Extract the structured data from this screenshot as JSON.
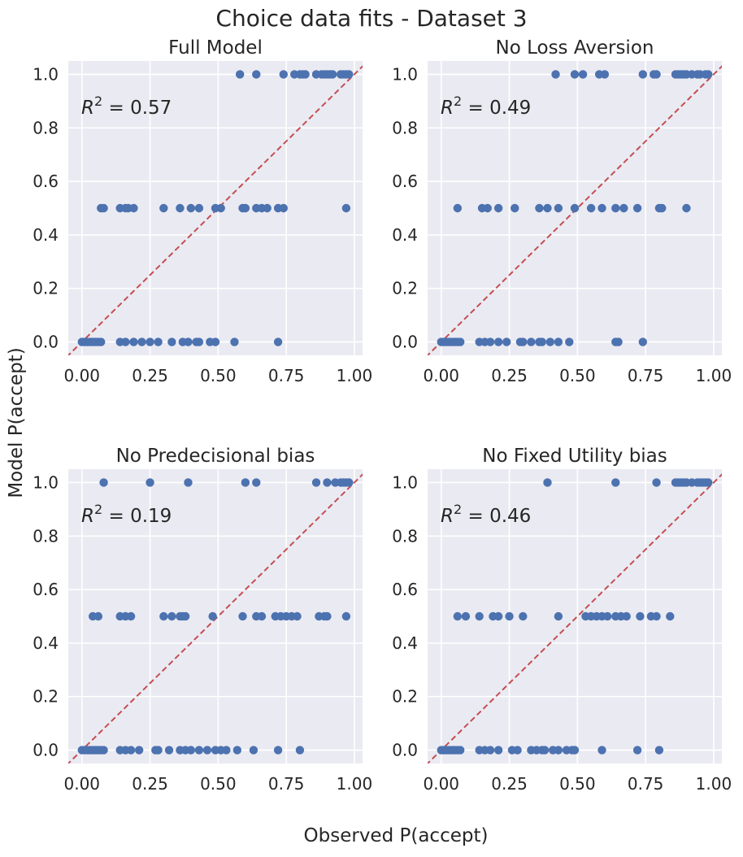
{
  "figure": {
    "title": "Choice data fits - Dataset 3",
    "xlabel": "Observed P(accept)",
    "ylabel": "Model P(accept)"
  },
  "colors": {
    "background": "#eaeaf2",
    "grid": "#ffffff",
    "points": "#4c72b0",
    "identity_line": "#c44e52",
    "text": "#262626"
  },
  "chart_data": [
    {
      "type": "scatter",
      "title": "Full Model",
      "annotation_label": "R",
      "annotation_sup": "2",
      "annotation_value": "= 0.57",
      "xlim": [
        -0.05,
        1.03
      ],
      "ylim": [
        -0.05,
        1.05
      ],
      "xticks": [
        "0.00",
        "0.25",
        "0.50",
        "0.75",
        "1.00"
      ],
      "yticks": [
        "0.0",
        "0.2",
        "0.4",
        "0.6",
        "0.8",
        "1.0"
      ],
      "grid": true,
      "identity_line": true,
      "points": [
        [
          0.0,
          0
        ],
        [
          0.01,
          0
        ],
        [
          0.02,
          0
        ],
        [
          0.03,
          0
        ],
        [
          0.04,
          0
        ],
        [
          0.05,
          0
        ],
        [
          0.06,
          0
        ],
        [
          0.07,
          0
        ],
        [
          0.14,
          0
        ],
        [
          0.16,
          0
        ],
        [
          0.19,
          0
        ],
        [
          0.22,
          0
        ],
        [
          0.25,
          0
        ],
        [
          0.28,
          0
        ],
        [
          0.33,
          0
        ],
        [
          0.37,
          0
        ],
        [
          0.39,
          0
        ],
        [
          0.42,
          0
        ],
        [
          0.43,
          0
        ],
        [
          0.47,
          0
        ],
        [
          0.49,
          0
        ],
        [
          0.56,
          0
        ],
        [
          0.72,
          0
        ],
        [
          0.07,
          0.5
        ],
        [
          0.08,
          0.5
        ],
        [
          0.14,
          0.5
        ],
        [
          0.16,
          0.5
        ],
        [
          0.17,
          0.5
        ],
        [
          0.19,
          0.5
        ],
        [
          0.3,
          0.5
        ],
        [
          0.36,
          0.5
        ],
        [
          0.4,
          0.5
        ],
        [
          0.43,
          0.5
        ],
        [
          0.49,
          0.5
        ],
        [
          0.51,
          0.5
        ],
        [
          0.59,
          0.5
        ],
        [
          0.6,
          0.5
        ],
        [
          0.64,
          0.5
        ],
        [
          0.66,
          0.5
        ],
        [
          0.68,
          0.5
        ],
        [
          0.72,
          0.5
        ],
        [
          0.74,
          0.5
        ],
        [
          0.97,
          0.5
        ],
        [
          0.58,
          1
        ],
        [
          0.64,
          1
        ],
        [
          0.74,
          1
        ],
        [
          0.78,
          1
        ],
        [
          0.8,
          1
        ],
        [
          0.81,
          1
        ],
        [
          0.82,
          1
        ],
        [
          0.86,
          1
        ],
        [
          0.88,
          1
        ],
        [
          0.89,
          1
        ],
        [
          0.9,
          1
        ],
        [
          0.91,
          1
        ],
        [
          0.92,
          1
        ],
        [
          0.95,
          1
        ],
        [
          0.96,
          1
        ],
        [
          0.97,
          1
        ],
        [
          0.98,
          1
        ]
      ]
    },
    {
      "type": "scatter",
      "title": "No Loss Aversion",
      "annotation_label": "R",
      "annotation_sup": "2",
      "annotation_value": "= 0.49",
      "xlim": [
        -0.05,
        1.03
      ],
      "ylim": [
        -0.05,
        1.05
      ],
      "xticks": [
        "0.00",
        "0.25",
        "0.50",
        "0.75",
        "1.00"
      ],
      "yticks": [
        "0.0",
        "0.2",
        "0.4",
        "0.6",
        "0.8",
        "1.0"
      ],
      "grid": true,
      "identity_line": true,
      "points": [
        [
          0.0,
          0
        ],
        [
          0.01,
          0
        ],
        [
          0.02,
          0
        ],
        [
          0.03,
          0
        ],
        [
          0.04,
          0
        ],
        [
          0.05,
          0
        ],
        [
          0.06,
          0
        ],
        [
          0.07,
          0
        ],
        [
          0.14,
          0
        ],
        [
          0.16,
          0
        ],
        [
          0.18,
          0
        ],
        [
          0.21,
          0
        ],
        [
          0.24,
          0
        ],
        [
          0.29,
          0
        ],
        [
          0.3,
          0
        ],
        [
          0.33,
          0
        ],
        [
          0.36,
          0
        ],
        [
          0.37,
          0
        ],
        [
          0.4,
          0
        ],
        [
          0.43,
          0
        ],
        [
          0.47,
          0
        ],
        [
          0.64,
          0
        ],
        [
          0.65,
          0
        ],
        [
          0.74,
          0
        ],
        [
          0.06,
          0.5
        ],
        [
          0.15,
          0.5
        ],
        [
          0.17,
          0.5
        ],
        [
          0.21,
          0.5
        ],
        [
          0.27,
          0.5
        ],
        [
          0.36,
          0.5
        ],
        [
          0.39,
          0.5
        ],
        [
          0.43,
          0.5
        ],
        [
          0.49,
          0.5
        ],
        [
          0.55,
          0.5
        ],
        [
          0.59,
          0.5
        ],
        [
          0.64,
          0.5
        ],
        [
          0.67,
          0.5
        ],
        [
          0.72,
          0.5
        ],
        [
          0.8,
          0.5
        ],
        [
          0.81,
          0.5
        ],
        [
          0.9,
          0.5
        ],
        [
          0.42,
          1
        ],
        [
          0.49,
          1
        ],
        [
          0.52,
          1
        ],
        [
          0.58,
          1
        ],
        [
          0.6,
          1
        ],
        [
          0.74,
          1
        ],
        [
          0.78,
          1
        ],
        [
          0.79,
          1
        ],
        [
          0.86,
          1
        ],
        [
          0.87,
          1
        ],
        [
          0.88,
          1
        ],
        [
          0.89,
          1
        ],
        [
          0.9,
          1
        ],
        [
          0.92,
          1
        ],
        [
          0.94,
          1
        ],
        [
          0.95,
          1
        ],
        [
          0.97,
          1
        ],
        [
          0.98,
          1
        ]
      ]
    },
    {
      "type": "scatter",
      "title": "No Predecisional bias",
      "annotation_label": "R",
      "annotation_sup": "2",
      "annotation_value": "= 0.19",
      "xlim": [
        -0.05,
        1.03
      ],
      "ylim": [
        -0.05,
        1.05
      ],
      "xticks": [
        "0.00",
        "0.25",
        "0.50",
        "0.75",
        "1.00"
      ],
      "yticks": [
        "0.0",
        "0.2",
        "0.4",
        "0.6",
        "0.8",
        "1.0"
      ],
      "grid": true,
      "identity_line": true,
      "points": [
        [
          0.0,
          0
        ],
        [
          0.01,
          0
        ],
        [
          0.02,
          0
        ],
        [
          0.03,
          0
        ],
        [
          0.04,
          0
        ],
        [
          0.05,
          0
        ],
        [
          0.06,
          0
        ],
        [
          0.07,
          0
        ],
        [
          0.08,
          0
        ],
        [
          0.14,
          0
        ],
        [
          0.16,
          0
        ],
        [
          0.18,
          0
        ],
        [
          0.21,
          0
        ],
        [
          0.27,
          0
        ],
        [
          0.28,
          0
        ],
        [
          0.32,
          0
        ],
        [
          0.36,
          0
        ],
        [
          0.38,
          0
        ],
        [
          0.4,
          0
        ],
        [
          0.43,
          0
        ],
        [
          0.46,
          0
        ],
        [
          0.49,
          0
        ],
        [
          0.51,
          0
        ],
        [
          0.53,
          0
        ],
        [
          0.57,
          0
        ],
        [
          0.63,
          0
        ],
        [
          0.72,
          0
        ],
        [
          0.8,
          0
        ],
        [
          0.04,
          0.5
        ],
        [
          0.06,
          0.5
        ],
        [
          0.14,
          0.5
        ],
        [
          0.16,
          0.5
        ],
        [
          0.18,
          0.5
        ],
        [
          0.3,
          0.5
        ],
        [
          0.33,
          0.5
        ],
        [
          0.36,
          0.5
        ],
        [
          0.37,
          0.5
        ],
        [
          0.38,
          0.5
        ],
        [
          0.48,
          0.5
        ],
        [
          0.59,
          0.5
        ],
        [
          0.64,
          0.5
        ],
        [
          0.66,
          0.5
        ],
        [
          0.71,
          0.5
        ],
        [
          0.73,
          0.5
        ],
        [
          0.75,
          0.5
        ],
        [
          0.77,
          0.5
        ],
        [
          0.79,
          0.5
        ],
        [
          0.87,
          0.5
        ],
        [
          0.89,
          0.5
        ],
        [
          0.9,
          0.5
        ],
        [
          0.97,
          0.5
        ],
        [
          0.08,
          1
        ],
        [
          0.25,
          1
        ],
        [
          0.39,
          1
        ],
        [
          0.6,
          1
        ],
        [
          0.64,
          1
        ],
        [
          0.86,
          1
        ],
        [
          0.9,
          1
        ],
        [
          0.93,
          1
        ],
        [
          0.95,
          1
        ],
        [
          0.96,
          1
        ],
        [
          0.97,
          1
        ],
        [
          0.98,
          1
        ]
      ]
    },
    {
      "type": "scatter",
      "title": "No Fixed Utility bias",
      "annotation_label": "R",
      "annotation_sup": "2",
      "annotation_value": "= 0.46",
      "xlim": [
        -0.05,
        1.03
      ],
      "ylim": [
        -0.05,
        1.05
      ],
      "xticks": [
        "0.00",
        "0.25",
        "0.50",
        "0.75",
        "1.00"
      ],
      "yticks": [
        "0.0",
        "0.2",
        "0.4",
        "0.6",
        "0.8",
        "1.0"
      ],
      "grid": true,
      "identity_line": true,
      "points": [
        [
          0.0,
          0
        ],
        [
          0.01,
          0
        ],
        [
          0.02,
          0
        ],
        [
          0.03,
          0
        ],
        [
          0.04,
          0
        ],
        [
          0.05,
          0
        ],
        [
          0.06,
          0
        ],
        [
          0.07,
          0
        ],
        [
          0.14,
          0
        ],
        [
          0.16,
          0
        ],
        [
          0.18,
          0
        ],
        [
          0.21,
          0
        ],
        [
          0.26,
          0
        ],
        [
          0.28,
          0
        ],
        [
          0.33,
          0
        ],
        [
          0.35,
          0
        ],
        [
          0.37,
          0
        ],
        [
          0.38,
          0
        ],
        [
          0.41,
          0
        ],
        [
          0.43,
          0
        ],
        [
          0.46,
          0
        ],
        [
          0.48,
          0
        ],
        [
          0.49,
          0
        ],
        [
          0.59,
          0
        ],
        [
          0.72,
          0
        ],
        [
          0.8,
          0
        ],
        [
          0.06,
          0.5
        ],
        [
          0.09,
          0.5
        ],
        [
          0.14,
          0.5
        ],
        [
          0.19,
          0.5
        ],
        [
          0.21,
          0.5
        ],
        [
          0.25,
          0.5
        ],
        [
          0.3,
          0.5
        ],
        [
          0.43,
          0.5
        ],
        [
          0.53,
          0.5
        ],
        [
          0.55,
          0.5
        ],
        [
          0.57,
          0.5
        ],
        [
          0.59,
          0.5
        ],
        [
          0.61,
          0.5
        ],
        [
          0.64,
          0.5
        ],
        [
          0.66,
          0.5
        ],
        [
          0.68,
          0.5
        ],
        [
          0.73,
          0.5
        ],
        [
          0.77,
          0.5
        ],
        [
          0.79,
          0.5
        ],
        [
          0.84,
          0.5
        ],
        [
          0.39,
          1
        ],
        [
          0.64,
          1
        ],
        [
          0.79,
          1
        ],
        [
          0.86,
          1
        ],
        [
          0.87,
          1
        ],
        [
          0.88,
          1
        ],
        [
          0.89,
          1
        ],
        [
          0.9,
          1
        ],
        [
          0.92,
          1
        ],
        [
          0.94,
          1
        ],
        [
          0.95,
          1
        ],
        [
          0.96,
          1
        ],
        [
          0.97,
          1
        ],
        [
          0.98,
          1
        ]
      ]
    }
  ]
}
